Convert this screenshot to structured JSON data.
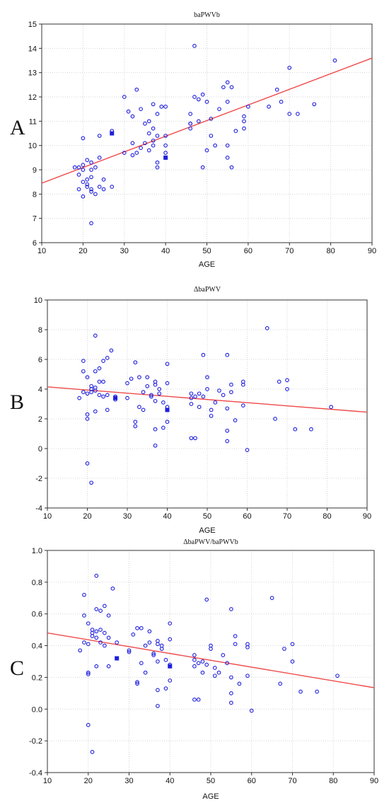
{
  "chart_data": [
    {
      "panel_label": "A",
      "type": "scatter",
      "title": "baPWVb",
      "xlabel": "AGE",
      "ylabel": "",
      "xlim": [
        10,
        90
      ],
      "ylim": [
        6,
        15
      ],
      "xticks": [
        10,
        20,
        30,
        40,
        50,
        60,
        70,
        80,
        90
      ],
      "yticks": [
        6,
        7,
        8,
        9,
        10,
        11,
        12,
        13,
        14,
        15
      ],
      "grid": true,
      "marker_color": "#1f1fdd",
      "line_color": "#ef4a4a",
      "fit_line": {
        "x": [
          10,
          90
        ],
        "y": [
          8.45,
          13.6
        ]
      },
      "highlight_points": {
        "x": [
          27,
          40
        ],
        "y": [
          10.5,
          9.5
        ]
      },
      "points": {
        "x": [
          18,
          19,
          19,
          19,
          20,
          20,
          20,
          20,
          20,
          21,
          21,
          21,
          21,
          22,
          22,
          22,
          22,
          22,
          22,
          23,
          23,
          24,
          24,
          24,
          25,
          25,
          27,
          27,
          30,
          30,
          31,
          32,
          32,
          32,
          33,
          33,
          34,
          34,
          35,
          35,
          36,
          36,
          36,
          37,
          37,
          37,
          37,
          38,
          38,
          38,
          38,
          39,
          40,
          40,
          40,
          40,
          46,
          46,
          46,
          46,
          47,
          47,
          48,
          48,
          49,
          49,
          50,
          50,
          51,
          51,
          52,
          53,
          54,
          55,
          55,
          55,
          55,
          56,
          56,
          57,
          59,
          59,
          59,
          60,
          65,
          67,
          68,
          70,
          70,
          72,
          76,
          81
        ],
        "y": [
          9.1,
          8.2,
          9.1,
          8.8,
          9.0,
          10.3,
          8.5,
          7.9,
          9.2,
          8.6,
          8.4,
          8.3,
          9.4,
          8.2,
          9.3,
          8.1,
          9.0,
          6.8,
          8.7,
          9.1,
          8.0,
          10.4,
          9.5,
          8.3,
          8.6,
          8.2,
          10.6,
          8.3,
          12.0,
          9.7,
          11.4,
          9.6,
          10.1,
          11.2,
          9.7,
          12.3,
          9.9,
          11.5,
          10.9,
          10.1,
          11.0,
          10.5,
          9.8,
          11.7,
          10.2,
          10.7,
          10.0,
          11.3,
          10.4,
          9.3,
          9.1,
          11.6,
          11.6,
          10.4,
          10.0,
          9.7,
          10.9,
          11.3,
          10.9,
          10.7,
          14.1,
          12.0,
          11.9,
          11.0,
          12.1,
          9.1,
          11.8,
          9.8,
          11.1,
          10.4,
          10.0,
          11.5,
          12.4,
          12.6,
          11.8,
          10.0,
          9.5,
          12.4,
          9.1,
          10.6,
          11.2,
          11.0,
          10.7,
          11.6,
          11.6,
          12.3,
          11.8,
          13.2,
          11.3,
          11.3,
          11.7,
          13.5
        ]
      }
    },
    {
      "panel_label": "B",
      "type": "scatter",
      "title": "ΔbaPWV",
      "xlabel": "AGE",
      "ylabel": "",
      "xlim": [
        10,
        90
      ],
      "ylim": [
        -4,
        10
      ],
      "xticks": [
        10,
        20,
        30,
        40,
        50,
        60,
        70,
        80,
        90
      ],
      "yticks": [
        -4,
        -2,
        0,
        2,
        4,
        6,
        8,
        10
      ],
      "grid": true,
      "marker_color": "#1f1fdd",
      "line_color": "#ef4a4a",
      "fit_line": {
        "x": [
          10,
          90
        ],
        "y": [
          4.15,
          2.45
        ]
      },
      "highlight_points": {
        "x": [
          27,
          40
        ],
        "y": [
          3.4,
          2.6
        ]
      },
      "points": {
        "x": [
          18,
          19,
          19,
          19,
          20,
          20,
          20,
          20,
          20,
          21,
          21,
          21,
          21,
          22,
          22,
          22,
          22,
          22,
          23,
          23,
          23,
          24,
          24,
          24,
          25,
          25,
          25,
          26,
          27,
          27,
          30,
          30,
          31,
          32,
          32,
          32,
          33,
          33,
          34,
          34,
          35,
          35,
          36,
          36,
          37,
          37,
          37,
          37,
          37,
          38,
          38,
          39,
          39,
          40,
          40,
          40,
          40,
          46,
          46,
          46,
          46,
          47,
          47,
          48,
          48,
          49,
          49,
          50,
          50,
          51,
          51,
          52,
          53,
          54,
          55,
          55,
          55,
          55,
          56,
          56,
          57,
          59,
          59,
          59,
          60,
          65,
          67,
          68,
          70,
          70,
          72,
          76,
          81
        ],
        "y": [
          3.4,
          5.9,
          5.2,
          3.8,
          4.8,
          2.3,
          2.0,
          -1.0,
          3.7,
          4.2,
          4.0,
          3.8,
          -2.3,
          5.2,
          4.1,
          2.5,
          7.6,
          3.9,
          5.4,
          4.5,
          3.6,
          5.9,
          4.5,
          3.5,
          6.1,
          2.6,
          3.6,
          6.6,
          3.3,
          3.5,
          4.4,
          3.4,
          4.7,
          1.8,
          1.5,
          5.8,
          4.8,
          2.8,
          3.8,
          2.6,
          4.2,
          4.8,
          3.6,
          3.5,
          4.5,
          4.3,
          3.2,
          1.3,
          0.2,
          3.7,
          4.0,
          3.1,
          1.4,
          5.7,
          4.4,
          2.8,
          1.8,
          3.7,
          3.4,
          3.0,
          0.7,
          3.5,
          0.7,
          2.8,
          3.7,
          6.3,
          3.5,
          4.8,
          4.0,
          2.6,
          2.2,
          3.1,
          3.9,
          3.6,
          6.3,
          2.7,
          1.2,
          0.5,
          4.3,
          3.8,
          1.9,
          4.5,
          4.3,
          2.9,
          -0.1,
          8.1,
          2.0,
          4.5,
          4.6,
          4.0,
          1.3,
          1.3,
          2.8
        ]
      }
    },
    {
      "panel_label": "C",
      "type": "scatter",
      "title": "ΔbaPWV/baPWVb",
      "xlabel": "AGE",
      "ylabel": "",
      "xlim": [
        10,
        90
      ],
      "ylim": [
        -0.4,
        1.0
      ],
      "xticks": [
        10,
        20,
        30,
        40,
        50,
        60,
        70,
        80,
        90
      ],
      "yticks": [
        -0.4,
        -0.2,
        0.0,
        0.2,
        0.4,
        0.6,
        0.8,
        1.0
      ],
      "ytick_labels": [
        "-0.4",
        "-0.2",
        "0.0",
        "0.2",
        "0.4",
        "0.6",
        "0.8",
        "1.0"
      ],
      "grid": true,
      "marker_color": "#1f1fdd",
      "line_color": "#ef4a4a",
      "fit_line": {
        "x": [
          10,
          90
        ],
        "y": [
          0.48,
          0.135
        ]
      },
      "highlight_points": {
        "x": [
          27,
          40
        ],
        "y": [
          0.32,
          0.27
        ]
      },
      "points": {
        "x": [
          18,
          19,
          19,
          19,
          20,
          20,
          20,
          20,
          20,
          21,
          21,
          21,
          21,
          22,
          22,
          22,
          22,
          22,
          23,
          23,
          23,
          24,
          24,
          24,
          25,
          25,
          25,
          26,
          27,
          27,
          30,
          30,
          31,
          32,
          32,
          32,
          33,
          33,
          34,
          34,
          35,
          35,
          36,
          36,
          37,
          37,
          37,
          37,
          37,
          38,
          38,
          39,
          39,
          40,
          40,
          40,
          40,
          46,
          46,
          46,
          46,
          47,
          47,
          48,
          48,
          49,
          49,
          50,
          50,
          51,
          51,
          52,
          53,
          54,
          55,
          55,
          55,
          55,
          56,
          56,
          57,
          59,
          59,
          59,
          60,
          65,
          67,
          68,
          70,
          70,
          72,
          76,
          81
        ],
        "y": [
          0.37,
          0.72,
          0.59,
          0.42,
          0.54,
          0.23,
          0.22,
          -0.1,
          0.41,
          0.5,
          0.48,
          0.46,
          -0.27,
          0.63,
          0.49,
          0.27,
          0.84,
          0.45,
          0.62,
          0.5,
          0.42,
          0.65,
          0.48,
          0.4,
          0.59,
          0.27,
          0.45,
          0.76,
          0.32,
          0.42,
          0.37,
          0.36,
          0.47,
          0.17,
          0.16,
          0.51,
          0.51,
          0.29,
          0.4,
          0.23,
          0.42,
          0.49,
          0.34,
          0.35,
          0.43,
          0.41,
          0.3,
          0.12,
          0.02,
          0.38,
          0.4,
          0.31,
          0.13,
          0.54,
          0.44,
          0.28,
          0.18,
          0.34,
          0.31,
          0.27,
          0.06,
          0.29,
          0.06,
          0.23,
          0.3,
          0.69,
          0.28,
          0.4,
          0.38,
          0.21,
          0.26,
          0.23,
          0.34,
          0.29,
          0.63,
          0.2,
          0.1,
          0.04,
          0.46,
          0.41,
          0.16,
          0.41,
          0.39,
          0.21,
          -0.01,
          0.7,
          0.16,
          0.38,
          0.41,
          0.3,
          0.11,
          0.11,
          0.21
        ]
      }
    }
  ]
}
